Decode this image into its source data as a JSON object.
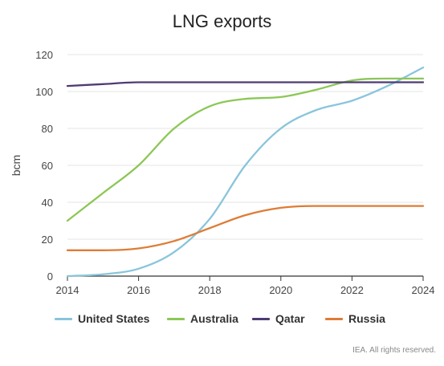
{
  "chart_data": {
    "type": "line",
    "title": "LNG exports",
    "xlabel": "",
    "ylabel": "bcm",
    "xlim": [
      2014,
      2024
    ],
    "ylim": [
      0,
      120
    ],
    "x_ticks": [
      "2014",
      "2016",
      "2018",
      "2020",
      "2022",
      "2024"
    ],
    "y_ticks": [
      "0",
      "20",
      "40",
      "60",
      "80",
      "100",
      "120"
    ],
    "grid": "horizontal",
    "legend_position": "bottom",
    "x": [
      2014,
      2015,
      2016,
      2017,
      2018,
      2019,
      2020,
      2021,
      2022,
      2023,
      2024
    ],
    "series": [
      {
        "name": "United States",
        "color": "#89c5db",
        "values": [
          0,
          1,
          4,
          13,
          31,
          60,
          80,
          90,
          95,
          103,
          113
        ]
      },
      {
        "name": "Australia",
        "color": "#8cc756",
        "values": [
          30,
          45,
          60,
          80,
          92,
          96,
          97,
          101,
          106,
          107,
          107
        ]
      },
      {
        "name": "Qatar",
        "color": "#4e3b72",
        "values": [
          103,
          104,
          105,
          105,
          105,
          105,
          105,
          105,
          105,
          105,
          105
        ]
      },
      {
        "name": "Russia",
        "color": "#de7c35",
        "values": [
          14,
          14,
          15,
          19,
          26,
          33,
          37,
          38,
          38,
          38,
          38
        ]
      }
    ],
    "source_note": "IEA. All rights reserved."
  }
}
